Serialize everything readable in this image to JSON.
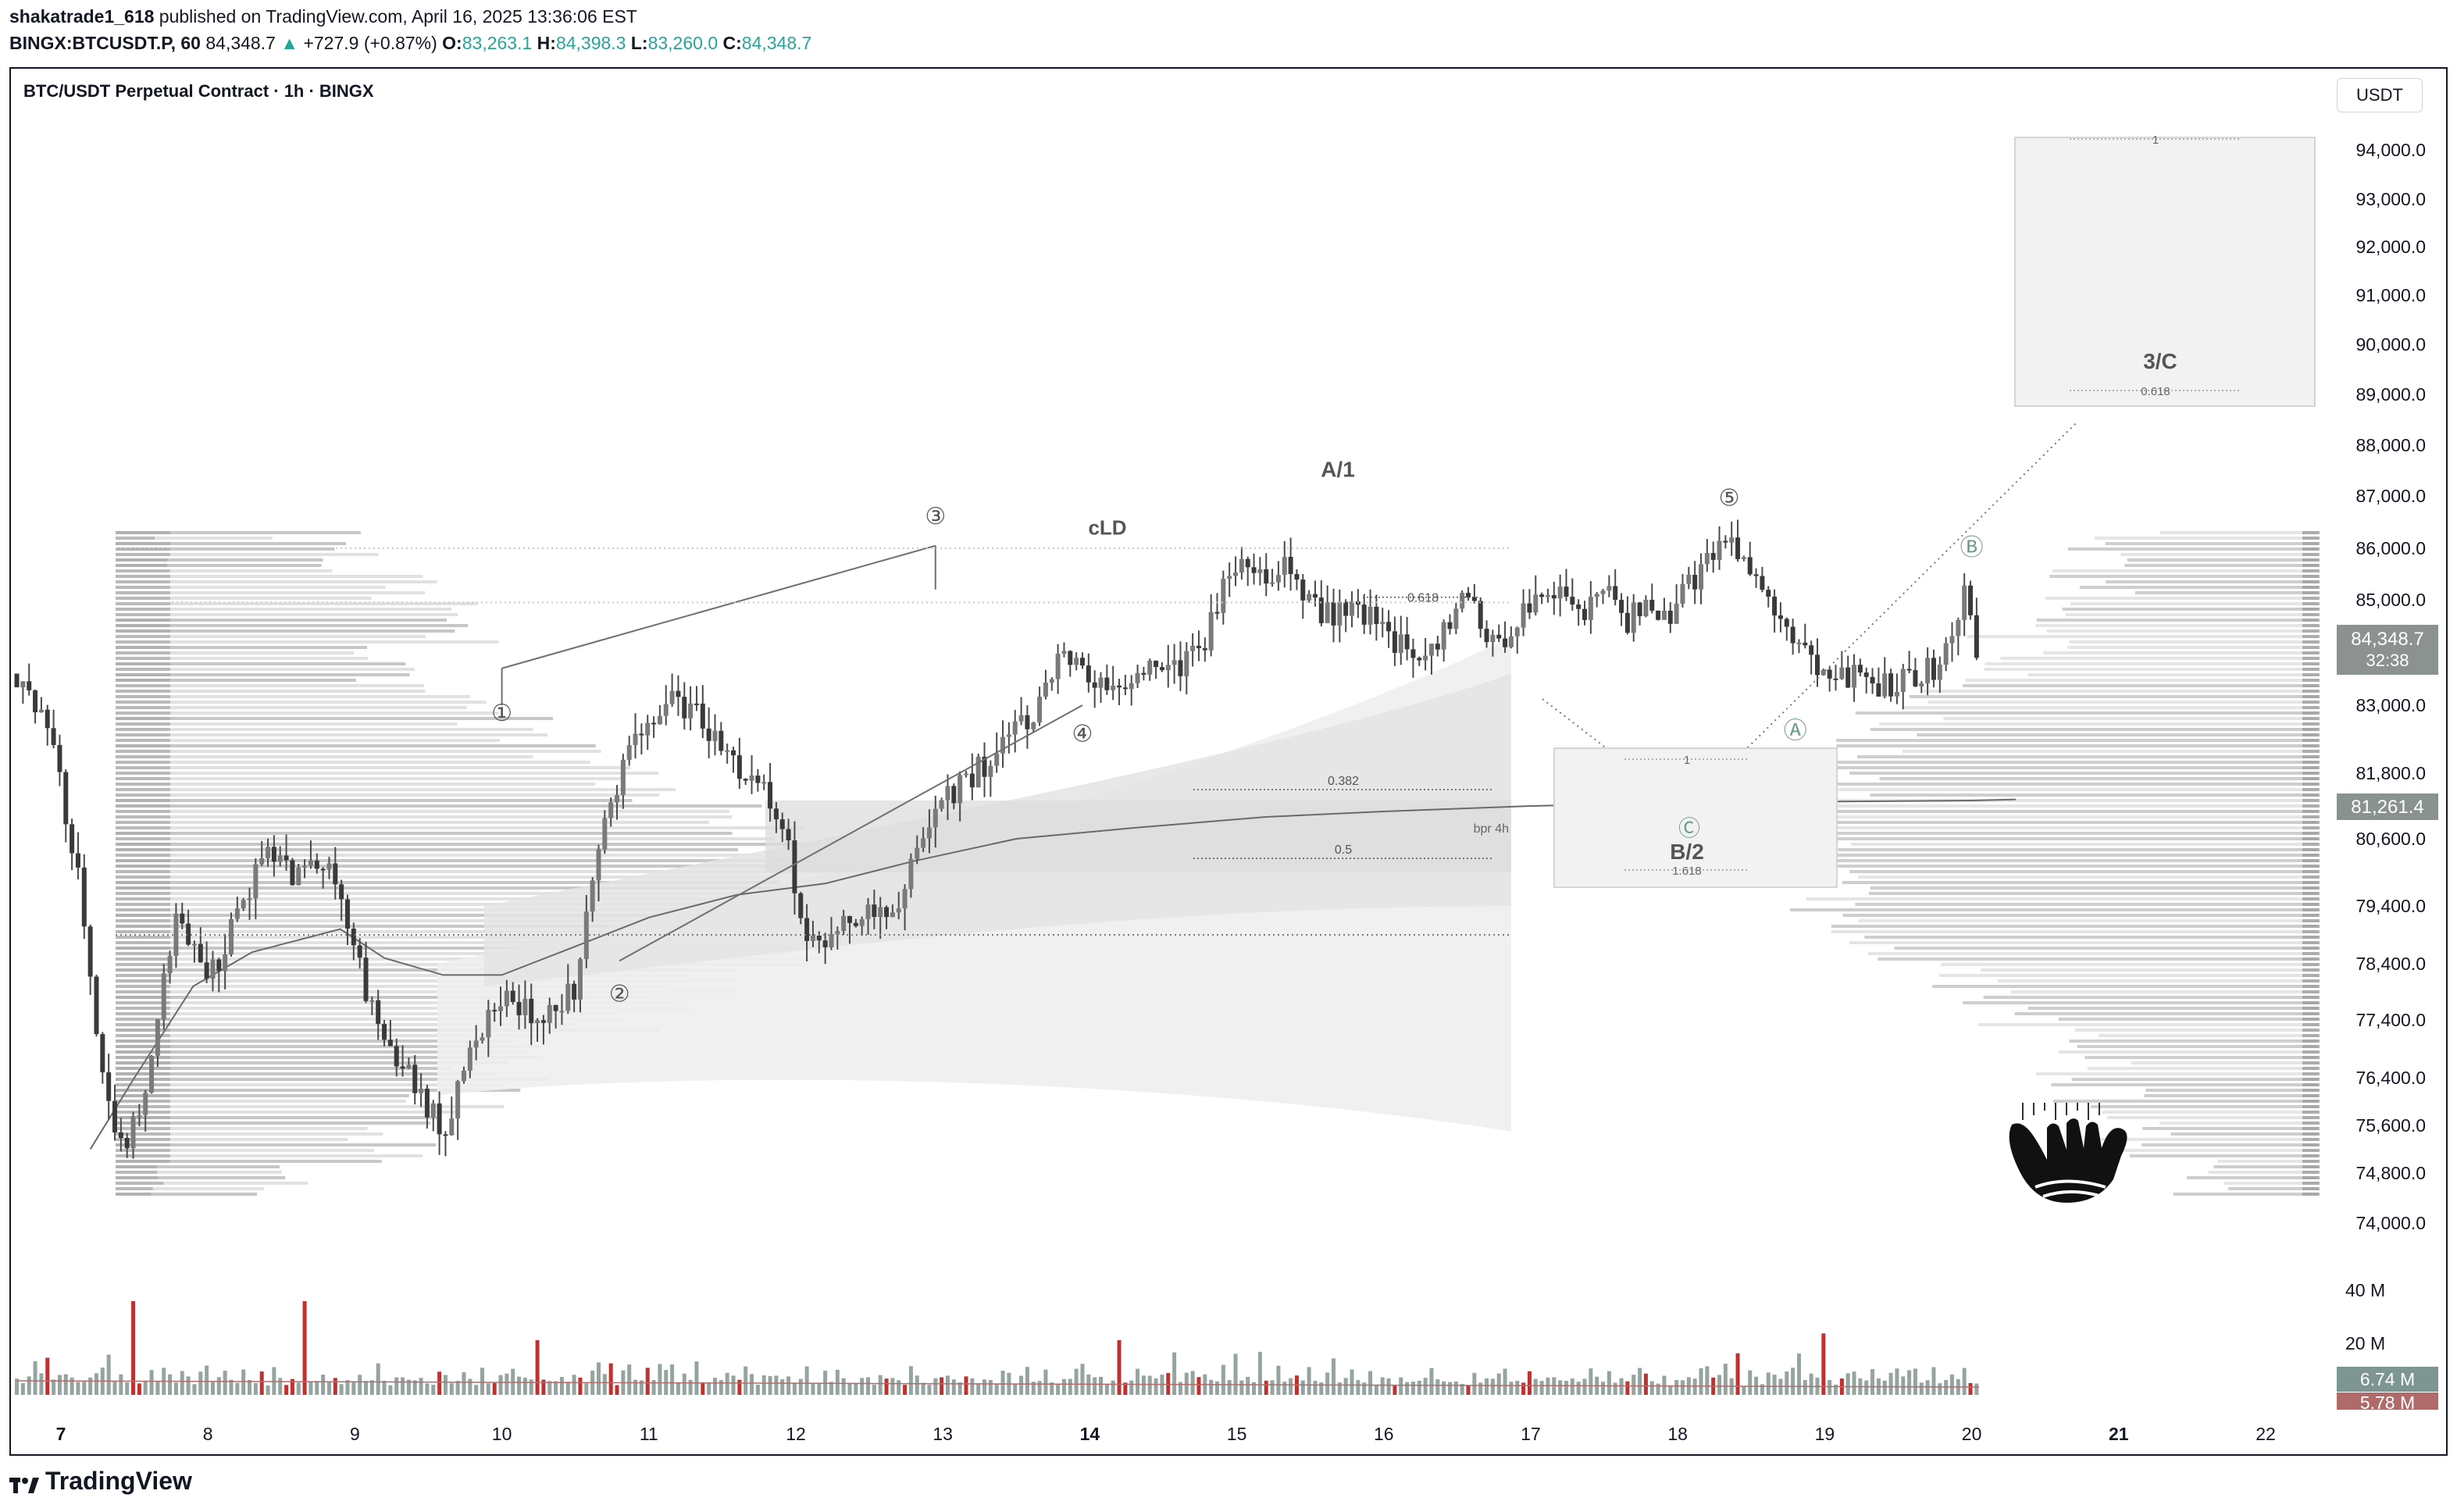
{
  "header": {
    "author": "shakatrade1_618",
    "published": " published on TradingView.com, April 16, 2025 13:36:06 EST",
    "symbol": "BINGX:BTCUSDT.P, 60",
    "last": "84,348.7",
    "change": "+727.9 (+0.87%)",
    "o_label": "O:",
    "o": "83,263.1",
    "h_label": "H:",
    "h": "84,398.3",
    "l_label": "L:",
    "l": "83,260.0",
    "c_label": "C:",
    "c": "84,348.7"
  },
  "chart_title": "BTC/USDT Perpetual Contract · 1h · BINGX",
  "currency_button": "USDT",
  "footer_brand": "TradingView",
  "colors": {
    "up": "#26a69a",
    "down": "#b71c1c",
    "candle": "#4a4a4a",
    "volume": "#8a9a96"
  },
  "chart_data": {
    "type": "candlestick",
    "symbol": "BTCUSDT.P",
    "timeframe": "1h",
    "x_ticks": [
      "7",
      "8",
      "9",
      "10",
      "11",
      "12",
      "13",
      "14",
      "15",
      "16",
      "17",
      "18",
      "19",
      "20",
      "21",
      "22"
    ],
    "bold_x_ticks": [
      "7",
      "14",
      "21"
    ],
    "y_ticks": [
      "94,000.0",
      "93,000.0",
      "92,000.0",
      "91,000.0",
      "90,000.0",
      "89,000.0",
      "88,000.0",
      "87,000.0",
      "86,000.0",
      "85,000.0",
      "83,000.0",
      "81,800.0",
      "80,600.0",
      "79,400.0",
      "78,400.0",
      "77,400.0",
      "76,400.0",
      "75,600.0",
      "74,800.0",
      "74,000.0"
    ],
    "ylim": [
      73500,
      94700
    ],
    "price_label": "84,348.7",
    "countdown": "32:38",
    "ma_label": "81,261.4",
    "volume_ticks": [
      "40 M",
      "20 M"
    ],
    "volume_labels": [
      "6.74 M",
      "5.78 M"
    ],
    "close_path": [
      [
        6.7,
        83600
      ],
      [
        6.9,
        82800
      ],
      [
        7.1,
        80200
      ],
      [
        7.3,
        76200
      ],
      [
        7.45,
        75100
      ],
      [
        7.6,
        76600
      ],
      [
        7.7,
        78200
      ],
      [
        7.8,
        79600
      ],
      [
        7.9,
        78600
      ],
      [
        8.0,
        78100
      ],
      [
        8.2,
        79200
      ],
      [
        8.4,
        80400
      ],
      [
        8.6,
        79900
      ],
      [
        8.8,
        80300
      ],
      [
        9.0,
        78700
      ],
      [
        9.1,
        77700
      ],
      [
        9.25,
        76900
      ],
      [
        9.45,
        76200
      ],
      [
        9.6,
        75400
      ],
      [
        9.8,
        76900
      ],
      [
        10.0,
        77700
      ],
      [
        10.3,
        77400
      ],
      [
        10.5,
        78000
      ],
      [
        10.65,
        80600
      ],
      [
        10.8,
        81700
      ],
      [
        11.0,
        82800
      ],
      [
        11.2,
        83100
      ],
      [
        11.4,
        82600
      ],
      [
        11.55,
        82000
      ],
      [
        11.75,
        81500
      ],
      [
        11.9,
        81100
      ],
      [
        12.05,
        79000
      ],
      [
        12.15,
        78600
      ],
      [
        12.3,
        79100
      ],
      [
        12.5,
        79400
      ],
      [
        12.7,
        79100
      ],
      [
        12.85,
        80700
      ],
      [
        13.0,
        81300
      ],
      [
        13.2,
        81700
      ],
      [
        13.4,
        82400
      ],
      [
        13.6,
        82800
      ],
      [
        13.8,
        83900
      ],
      [
        14.0,
        83500
      ],
      [
        14.2,
        83300
      ],
      [
        14.4,
        83800
      ],
      [
        14.6,
        83600
      ],
      [
        14.8,
        84300
      ],
      [
        14.9,
        85200
      ],
      [
        15.05,
        85700
      ],
      [
        15.2,
        85500
      ],
      [
        15.35,
        85700
      ],
      [
        15.45,
        85200
      ],
      [
        15.6,
        84700
      ],
      [
        15.8,
        84900
      ],
      [
        16.0,
        84400
      ],
      [
        16.2,
        84000
      ],
      [
        16.3,
        83800
      ],
      [
        16.45,
        84700
      ],
      [
        16.55,
        85100
      ],
      [
        16.7,
        84300
      ],
      [
        16.8,
        84100
      ],
      [
        16.95,
        84900
      ],
      [
        17.1,
        85300
      ],
      [
        17.25,
        85100
      ],
      [
        17.35,
        84500
      ],
      [
        17.5,
        85400
      ],
      [
        17.65,
        84600
      ],
      [
        17.8,
        84900
      ],
      [
        17.95,
        84800
      ],
      [
        18.1,
        85400
      ],
      [
        18.25,
        85800
      ],
      [
        18.35,
        86300
      ],
      [
        18.5,
        85500
      ],
      [
        18.6,
        85000
      ],
      [
        18.75,
        84200
      ],
      [
        18.9,
        83800
      ],
      [
        19.05,
        83400
      ],
      [
        19.2,
        83600
      ],
      [
        19.35,
        83300
      ],
      [
        19.55,
        83500
      ],
      [
        19.75,
        83700
      ],
      [
        19.85,
        84400
      ],
      [
        19.95,
        85200
      ],
      [
        20.0,
        84800
      ],
      [
        20.05,
        83400
      ]
    ],
    "volume_series": [
      14,
      8,
      12,
      16,
      9,
      22,
      6,
      10,
      13,
      8,
      9,
      11,
      7,
      14,
      12,
      18,
      6,
      10,
      9,
      28,
      8,
      7,
      12,
      9,
      11,
      8,
      6,
      14,
      9,
      7,
      11,
      16,
      8,
      10,
      12,
      6,
      9,
      13,
      7,
      8,
      10,
      6,
      12,
      9,
      5,
      8,
      7,
      11,
      6,
      9,
      8,
      10,
      7,
      6,
      12,
      9,
      8,
      7,
      10,
      14,
      9,
      6,
      8,
      11,
      7,
      9,
      12,
      8,
      6,
      10,
      9,
      7,
      8,
      13,
      9,
      6,
      11,
      8,
      7,
      10,
      9,
      12,
      14,
      8,
      7,
      9,
      6,
      10,
      8,
      7,
      9,
      11
    ],
    "annotations": {
      "waves": [
        "①",
        "②",
        "③",
        "④",
        "⑤",
        "Ⓐ",
        "Ⓑ",
        "Ⓒ"
      ],
      "wave_top": "A/1",
      "cld": "cLD",
      "fib_618": "0.618",
      "fib_382": "0.382",
      "fib_05": "0.5",
      "bpr": "bpr 4h",
      "target_b": "B/2",
      "target_b_1": "1",
      "target_b_1618": "1.618",
      "target_c": "3/C",
      "target_c_1": "1",
      "target_c_618": "0.618"
    }
  }
}
